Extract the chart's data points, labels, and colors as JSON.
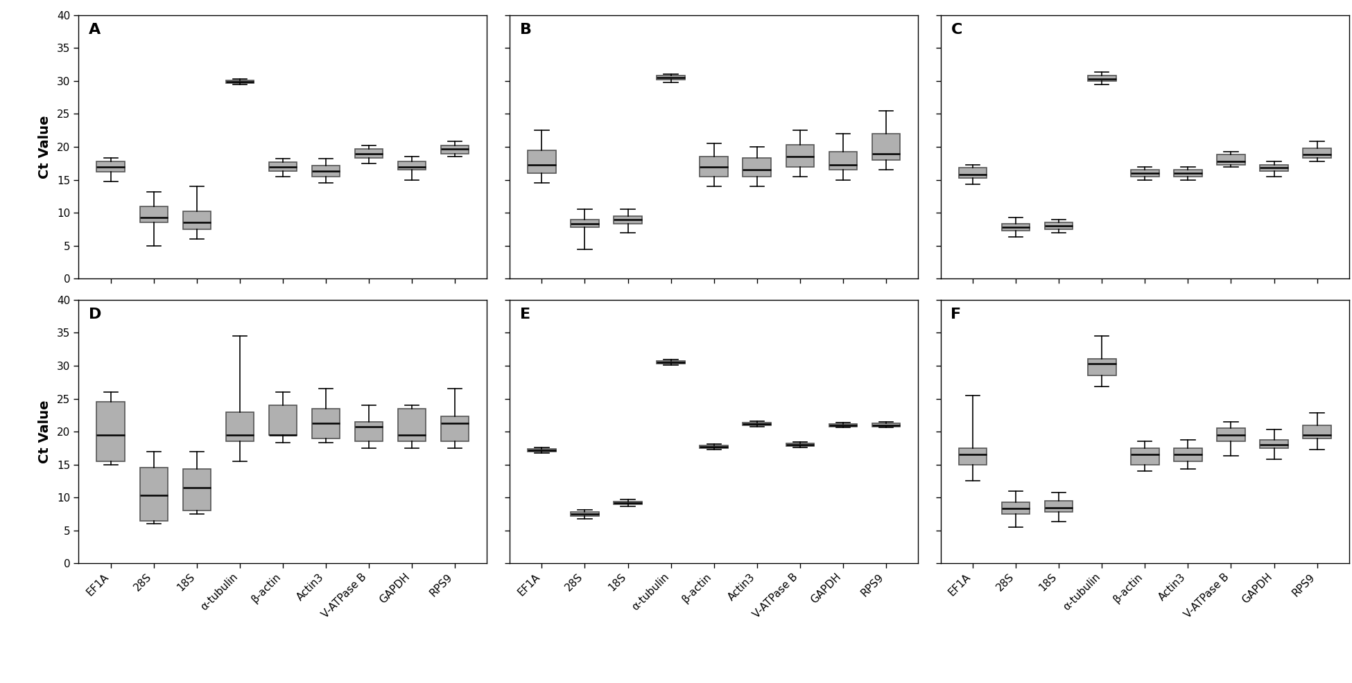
{
  "categories": [
    "EF1A",
    "28S",
    "18S",
    "α-tubulin",
    "β-actin",
    "Actin3",
    "V-ATPase B",
    "GAPDH",
    "RPS9"
  ],
  "ylim": [
    0,
    40
  ],
  "yticks": [
    0,
    5,
    10,
    15,
    20,
    25,
    30,
    35,
    40
  ],
  "ylabel": "Ct Value",
  "box_facecolor": "#b0b0b0",
  "box_edgecolor": "#555555",
  "median_color": "#000000",
  "whisker_color": "#000000",
  "cap_color": "#000000",
  "panels": {
    "A": [
      {
        "q1": 16.2,
        "median": 17.0,
        "q3": 17.8,
        "whislo": 14.8,
        "whishi": 18.3
      },
      {
        "q1": 8.5,
        "median": 9.3,
        "q3": 11.0,
        "whislo": 5.0,
        "whishi": 13.2
      },
      {
        "q1": 7.5,
        "median": 8.5,
        "q3": 10.2,
        "whislo": 6.0,
        "whishi": 14.0
      },
      {
        "q1": 29.7,
        "median": 29.9,
        "q3": 30.1,
        "whislo": 29.5,
        "whishi": 30.3
      },
      {
        "q1": 16.3,
        "median": 17.0,
        "q3": 17.7,
        "whislo": 15.5,
        "whishi": 18.2
      },
      {
        "q1": 15.5,
        "median": 16.3,
        "q3": 17.2,
        "whislo": 14.5,
        "whishi": 18.2
      },
      {
        "q1": 18.3,
        "median": 19.0,
        "q3": 19.7,
        "whislo": 17.5,
        "whishi": 20.2
      },
      {
        "q1": 16.5,
        "median": 17.0,
        "q3": 17.8,
        "whislo": 15.0,
        "whishi": 18.5
      },
      {
        "q1": 19.0,
        "median": 19.7,
        "q3": 20.2,
        "whislo": 18.5,
        "whishi": 20.8
      }
    ],
    "B": [
      {
        "q1": 16.0,
        "median": 17.3,
        "q3": 19.5,
        "whislo": 14.5,
        "whishi": 22.5
      },
      {
        "q1": 7.8,
        "median": 8.3,
        "q3": 9.0,
        "whislo": 4.5,
        "whishi": 10.5
      },
      {
        "q1": 8.3,
        "median": 9.0,
        "q3": 9.5,
        "whislo": 7.0,
        "whishi": 10.5
      },
      {
        "q1": 30.2,
        "median": 30.5,
        "q3": 30.8,
        "whislo": 29.8,
        "whishi": 31.0
      },
      {
        "q1": 15.5,
        "median": 17.0,
        "q3": 18.5,
        "whislo": 14.0,
        "whishi": 20.5
      },
      {
        "q1": 15.5,
        "median": 16.5,
        "q3": 18.3,
        "whislo": 14.0,
        "whishi": 20.0
      },
      {
        "q1": 17.0,
        "median": 18.5,
        "q3": 20.3,
        "whislo": 15.5,
        "whishi": 22.5
      },
      {
        "q1": 16.5,
        "median": 17.3,
        "q3": 19.3,
        "whislo": 15.0,
        "whishi": 22.0
      },
      {
        "q1": 18.0,
        "median": 19.0,
        "q3": 22.0,
        "whislo": 16.5,
        "whishi": 25.5
      }
    ],
    "C": [
      {
        "q1": 15.3,
        "median": 15.8,
        "q3": 16.8,
        "whislo": 14.3,
        "whishi": 17.3
      },
      {
        "q1": 7.3,
        "median": 7.8,
        "q3": 8.3,
        "whislo": 6.3,
        "whishi": 9.3
      },
      {
        "q1": 7.5,
        "median": 8.0,
        "q3": 8.5,
        "whislo": 7.0,
        "whishi": 9.0
      },
      {
        "q1": 30.0,
        "median": 30.3,
        "q3": 30.8,
        "whislo": 29.5,
        "whishi": 31.3
      },
      {
        "q1": 15.5,
        "median": 16.0,
        "q3": 16.5,
        "whislo": 15.0,
        "whishi": 17.0
      },
      {
        "q1": 15.5,
        "median": 16.0,
        "q3": 16.5,
        "whislo": 15.0,
        "whishi": 17.0
      },
      {
        "q1": 17.3,
        "median": 17.8,
        "q3": 18.8,
        "whislo": 17.0,
        "whishi": 19.3
      },
      {
        "q1": 16.3,
        "median": 16.8,
        "q3": 17.3,
        "whislo": 15.5,
        "whishi": 17.8
      },
      {
        "q1": 18.3,
        "median": 18.8,
        "q3": 19.8,
        "whislo": 17.8,
        "whishi": 20.8
      }
    ],
    "D": [
      {
        "q1": 15.5,
        "median": 19.5,
        "q3": 24.5,
        "whislo": 15.0,
        "whishi": 26.0
      },
      {
        "q1": 6.5,
        "median": 10.3,
        "q3": 14.5,
        "whislo": 6.0,
        "whishi": 17.0
      },
      {
        "q1": 8.0,
        "median": 11.5,
        "q3": 14.3,
        "whislo": 7.5,
        "whishi": 17.0
      },
      {
        "q1": 18.5,
        "median": 19.5,
        "q3": 23.0,
        "whislo": 15.5,
        "whishi": 34.5
      },
      {
        "q1": 19.5,
        "median": 19.5,
        "q3": 24.0,
        "whislo": 18.3,
        "whishi": 26.0
      },
      {
        "q1": 19.0,
        "median": 21.3,
        "q3": 23.5,
        "whislo": 18.3,
        "whishi": 26.5
      },
      {
        "q1": 18.5,
        "median": 20.8,
        "q3": 21.5,
        "whislo": 17.5,
        "whishi": 24.0
      },
      {
        "q1": 18.5,
        "median": 19.5,
        "q3": 23.5,
        "whislo": 17.5,
        "whishi": 24.0
      },
      {
        "q1": 18.5,
        "median": 21.3,
        "q3": 22.3,
        "whislo": 17.5,
        "whishi": 26.5
      }
    ],
    "E": [
      {
        "q1": 17.0,
        "median": 17.2,
        "q3": 17.4,
        "whislo": 16.8,
        "whishi": 17.6
      },
      {
        "q1": 7.2,
        "median": 7.5,
        "q3": 7.8,
        "whislo": 6.8,
        "whishi": 8.1
      },
      {
        "q1": 9.0,
        "median": 9.2,
        "q3": 9.4,
        "whislo": 8.7,
        "whishi": 9.7
      },
      {
        "q1": 30.3,
        "median": 30.5,
        "q3": 30.7,
        "whislo": 30.1,
        "whishi": 30.9
      },
      {
        "q1": 17.5,
        "median": 17.7,
        "q3": 17.9,
        "whislo": 17.3,
        "whishi": 18.1
      },
      {
        "q1": 21.0,
        "median": 21.2,
        "q3": 21.4,
        "whislo": 20.8,
        "whishi": 21.6
      },
      {
        "q1": 17.8,
        "median": 18.0,
        "q3": 18.2,
        "whislo": 17.6,
        "whishi": 18.4
      },
      {
        "q1": 20.8,
        "median": 21.0,
        "q3": 21.2,
        "whislo": 20.6,
        "whishi": 21.4
      },
      {
        "q1": 20.8,
        "median": 21.0,
        "q3": 21.3,
        "whislo": 20.6,
        "whishi": 21.5
      }
    ],
    "F": [
      {
        "q1": 15.0,
        "median": 16.5,
        "q3": 17.5,
        "whislo": 12.5,
        "whishi": 25.5
      },
      {
        "q1": 7.5,
        "median": 8.3,
        "q3": 9.3,
        "whislo": 5.5,
        "whishi": 11.0
      },
      {
        "q1": 7.8,
        "median": 8.5,
        "q3": 9.5,
        "whislo": 6.3,
        "whishi": 10.8
      },
      {
        "q1": 28.5,
        "median": 30.3,
        "q3": 31.0,
        "whislo": 26.8,
        "whishi": 34.5
      },
      {
        "q1": 15.0,
        "median": 16.5,
        "q3": 17.5,
        "whislo": 14.0,
        "whishi": 18.5
      },
      {
        "q1": 15.5,
        "median": 16.5,
        "q3": 17.5,
        "whislo": 14.3,
        "whishi": 18.8
      },
      {
        "q1": 18.5,
        "median": 19.5,
        "q3": 20.5,
        "whislo": 16.3,
        "whishi": 21.5
      },
      {
        "q1": 17.5,
        "median": 18.0,
        "q3": 18.8,
        "whislo": 15.8,
        "whishi": 20.3
      },
      {
        "q1": 19.0,
        "median": 19.5,
        "q3": 21.0,
        "whislo": 17.3,
        "whishi": 22.8
      }
    ]
  }
}
